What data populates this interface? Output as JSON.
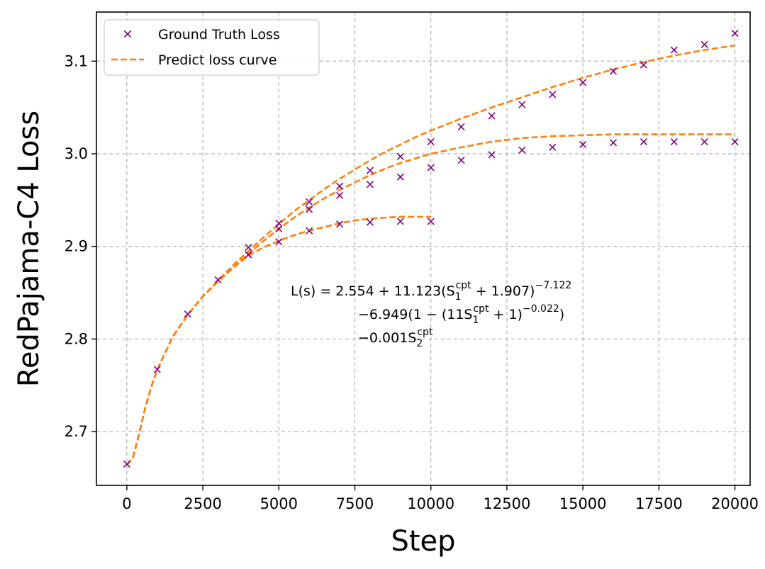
{
  "chart_data": {
    "type": "line",
    "xlabel": "Step",
    "ylabel": "RedPajama-C4 Loss",
    "xlim": [
      -1000,
      20500
    ],
    "ylim": [
      2.642,
      3.153
    ],
    "xticks": [
      0,
      2500,
      5000,
      7500,
      10000,
      12500,
      15000,
      17500,
      20000
    ],
    "xtick_labels": [
      "0",
      "2500",
      "5000",
      "7500",
      "10000",
      "12500",
      "15000",
      "17500",
      "20000"
    ],
    "yticks": [
      2.7,
      2.8,
      2.9,
      3.0,
      3.1
    ],
    "ytick_labels": [
      "2.7",
      "2.8",
      "2.9",
      "3.0",
      "3.1"
    ],
    "grid": true,
    "legend_position": "top-left",
    "legend": [
      {
        "label": "Ground Truth Loss",
        "marker": "x",
        "color": "#800080"
      },
      {
        "label": "Predict loss curve",
        "style": "dashed",
        "color": "#ff7f0e"
      }
    ],
    "annotation": {
      "line1": {
        "prefix": "L(s) = 2.554 + 11.123(S",
        "sub": "1",
        "sup": "cpt",
        "suffix": " + 1.907)",
        "power": "−7.122"
      },
      "line2": {
        "prefix": "−6.949(1 − (11S",
        "sub": "1",
        "sup": "cpt",
        "suffix": " + 1)",
        "power": "−0.022",
        "end": ")"
      },
      "line3": {
        "prefix": "−0.001S",
        "sub": "2",
        "sup": "cpt"
      }
    },
    "ground_truth": {
      "name": "Ground Truth Loss",
      "color": "#800080",
      "points": [
        [
          0,
          2.665
        ],
        [
          1000,
          2.767
        ],
        [
          2000,
          2.827
        ],
        [
          3000,
          2.864
        ],
        [
          4000,
          2.899
        ],
        [
          4000,
          2.891
        ],
        [
          5000,
          2.925
        ],
        [
          5000,
          2.919
        ],
        [
          5000,
          2.905
        ],
        [
          6000,
          2.948
        ],
        [
          6000,
          2.94
        ],
        [
          6000,
          2.917
        ],
        [
          7000,
          2.965
        ],
        [
          7000,
          2.955
        ],
        [
          7000,
          2.924
        ],
        [
          8000,
          2.982
        ],
        [
          8000,
          2.967
        ],
        [
          8000,
          2.926
        ],
        [
          9000,
          2.997
        ],
        [
          9000,
          2.975
        ],
        [
          9000,
          2.927
        ],
        [
          10000,
          3.013
        ],
        [
          10000,
          2.985
        ],
        [
          10000,
          2.927
        ],
        [
          11000,
          3.029
        ],
        [
          11000,
          2.993
        ],
        [
          12000,
          3.041
        ],
        [
          12000,
          2.999
        ],
        [
          13000,
          3.053
        ],
        [
          13000,
          3.004
        ],
        [
          14000,
          3.064
        ],
        [
          14000,
          3.007
        ],
        [
          15000,
          3.077
        ],
        [
          15000,
          3.01
        ],
        [
          16000,
          3.089
        ],
        [
          16000,
          3.012
        ],
        [
          17000,
          3.096
        ],
        [
          17000,
          3.013
        ],
        [
          18000,
          3.112
        ],
        [
          18000,
          3.013
        ],
        [
          19000,
          3.118
        ],
        [
          19000,
          3.013
        ],
        [
          20000,
          3.13
        ],
        [
          20000,
          3.013
        ]
      ]
    },
    "predicted_curves": [
      {
        "name": "Predict loss curve",
        "color": "#ff7f0e",
        "x": [
          0,
          200,
          400,
          600,
          800,
          1000,
          1500,
          2000,
          2500,
          3000,
          3500,
          4000,
          4500,
          5000,
          5500,
          6000,
          6500,
          7000,
          7500,
          8000,
          8500,
          9000,
          9500,
          10000,
          11000,
          12000,
          13000,
          14000,
          15000,
          16000,
          17000,
          18000,
          19000,
          20000
        ],
        "y": [
          2.664,
          2.672,
          2.697,
          2.725,
          2.748,
          2.767,
          2.802,
          2.826,
          2.846,
          2.863,
          2.88,
          2.895,
          2.91,
          2.924,
          2.938,
          2.95,
          2.962,
          2.973,
          2.983,
          2.993,
          3.002,
          3.01,
          3.018,
          3.025,
          3.038,
          3.05,
          3.061,
          3.072,
          3.082,
          3.091,
          3.099,
          3.106,
          3.112,
          3.117
        ]
      },
      {
        "name": "",
        "color": "#ff7f0e",
        "x": [
          0,
          200,
          400,
          600,
          800,
          1000,
          1500,
          2000,
          2500,
          3000,
          3500,
          4000,
          4500,
          5000,
          5500,
          6000,
          6500,
          7000,
          7500,
          8000,
          8500,
          9000,
          9500,
          10000,
          11000,
          12000,
          13000,
          14000,
          15000,
          16000,
          17000,
          18000,
          19000,
          20000
        ],
        "y": [
          2.664,
          2.672,
          2.697,
          2.725,
          2.748,
          2.767,
          2.802,
          2.826,
          2.846,
          2.862,
          2.877,
          2.892,
          2.906,
          2.919,
          2.931,
          2.942,
          2.952,
          2.961,
          2.969,
          2.977,
          2.984,
          2.99,
          2.995,
          3.0,
          3.007,
          3.013,
          3.017,
          3.019,
          3.02,
          3.021,
          3.021,
          3.021,
          3.021,
          3.021
        ]
      },
      {
        "name": "",
        "color": "#ff7f0e",
        "x": [
          0,
          200,
          400,
          600,
          800,
          1000,
          1500,
          2000,
          2500,
          3000,
          3500,
          4000,
          4500,
          5000,
          5500,
          6000,
          6500,
          7000,
          7500,
          8000,
          8500,
          9000,
          9500,
          10000
        ],
        "y": [
          2.664,
          2.672,
          2.697,
          2.725,
          2.748,
          2.767,
          2.802,
          2.826,
          2.846,
          2.862,
          2.877,
          2.89,
          2.899,
          2.906,
          2.912,
          2.917,
          2.921,
          2.925,
          2.928,
          2.93,
          2.931,
          2.932,
          2.932,
          2.932
        ]
      }
    ]
  }
}
